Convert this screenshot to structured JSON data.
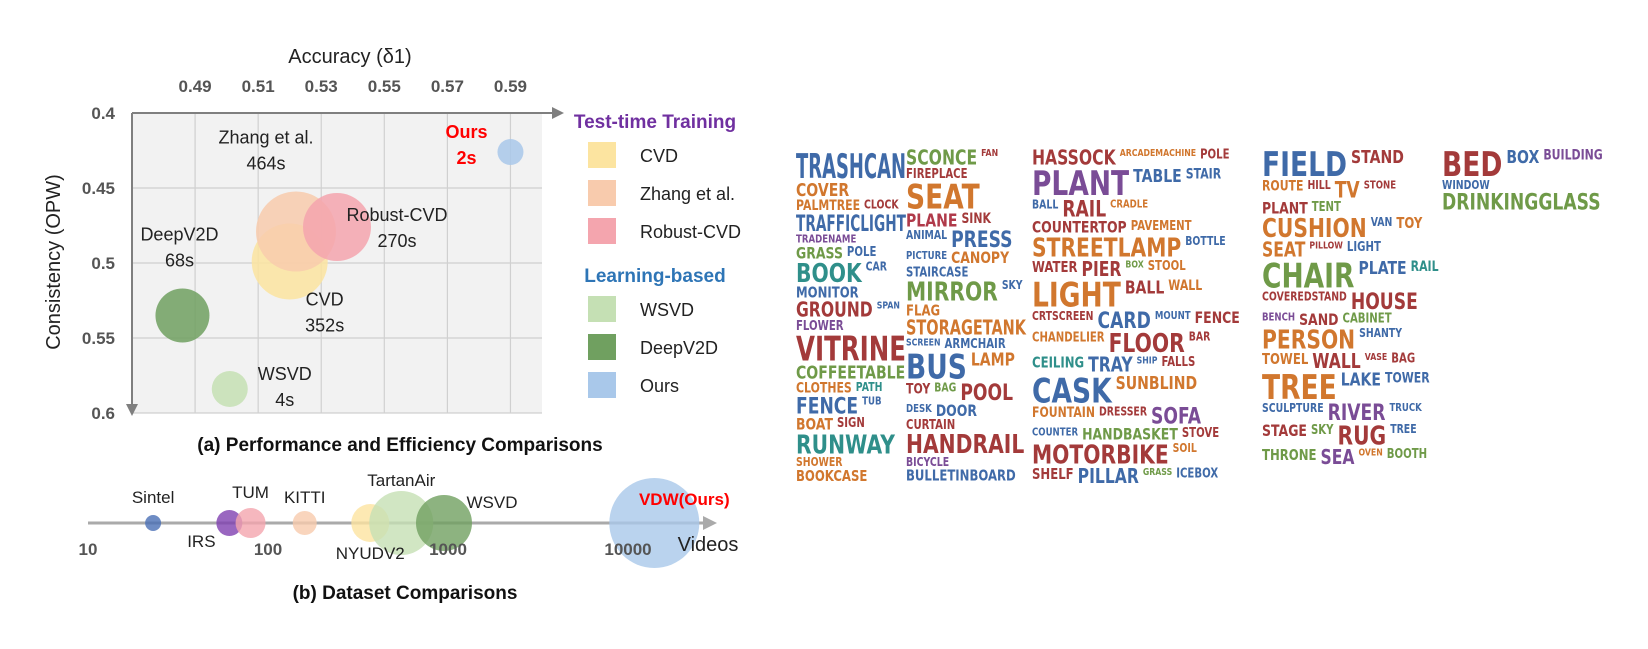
{
  "chart_data": [
    {
      "type": "scatter",
      "subtype": "bubble",
      "title": "(a) Performance and Efficiency Comparisons",
      "xlabel": "Accuracy (δ1)",
      "ylabel": "Consistency (OPW)",
      "x_ticks": [
        "0.49",
        "0.51",
        "0.53",
        "0.55",
        "0.57",
        "0.59"
      ],
      "y_ticks": [
        "0.4",
        "0.45",
        "0.5",
        "0.55",
        "0.6"
      ],
      "xlim": [
        0.47,
        0.6
      ],
      "ylim": [
        0.4,
        0.6
      ],
      "y_inverted": true,
      "grid": true,
      "legend_position": "right",
      "legend_groups": [
        {
          "title": "Test-time Training",
          "color": "#7030a0",
          "items": [
            "CVD",
            "Zhang et al.",
            "Robust-CVD"
          ]
        },
        {
          "title": "Learning-based",
          "color": "#2e75b6",
          "items": [
            "WSVD",
            "DeepV2D",
            "Ours"
          ]
        }
      ],
      "series": [
        {
          "name": "CVD",
          "x": 0.52,
          "y": 0.499,
          "label": "CVD",
          "time": "352s",
          "color": "#fce4a0",
          "size": 38
        },
        {
          "name": "Zhang et al.",
          "x": 0.522,
          "y": 0.479,
          "label": "Zhang et al.",
          "time": "464s",
          "color": "#f8cbad",
          "size": 40
        },
        {
          "name": "Robust-CVD",
          "x": 0.535,
          "y": 0.476,
          "label": "Robust-CVD",
          "time": "270s",
          "color": "#f4a5ae",
          "size": 34
        },
        {
          "name": "WSVD",
          "x": 0.501,
          "y": 0.584,
          "label": "WSVD",
          "time": "4s",
          "color": "#c5e0b4",
          "size": 18
        },
        {
          "name": "DeepV2D",
          "x": 0.486,
          "y": 0.535,
          "label": "DeepV2D",
          "time": "68s",
          "color": "#70a060",
          "size": 27
        },
        {
          "name": "Ours",
          "x": 0.59,
          "y": 0.426,
          "label": "Ours",
          "time": "2s",
          "color": "#a9c8ea",
          "size": 13
        }
      ]
    },
    {
      "type": "scatter",
      "subtype": "bubble",
      "title": "(b) Dataset Comparisons",
      "xlabel": "Videos",
      "x_scale": "log",
      "x_ticks": [
        "10",
        "100",
        "1000",
        "10000"
      ],
      "series": [
        {
          "name": "Sintel",
          "x": 23,
          "label": "Sintel",
          "color": "#4a6fb5",
          "size": 8
        },
        {
          "name": "IRS",
          "x": 61,
          "label": "IRS",
          "color": "#8040b0",
          "size": 13
        },
        {
          "name": "TUM",
          "x": 80,
          "label": "TUM",
          "color": "#f4a5ae",
          "size": 15
        },
        {
          "name": "KITTI",
          "x": 160,
          "label": "KITTI",
          "color": "#f8cbad",
          "size": 12
        },
        {
          "name": "NYUDV2",
          "x": 370,
          "label": "NYUDV2",
          "color": "#fce4a0",
          "size": 19
        },
        {
          "name": "TartanAir",
          "x": 550,
          "label": "TartanAir",
          "color": "#c5e0b4",
          "size": 32
        },
        {
          "name": "WSVD",
          "x": 950,
          "label": "WSVD",
          "color": "#70a060",
          "size": 28
        },
        {
          "name": "VDW(Ours)",
          "x": 14000,
          "label": "VDW(Ours)",
          "color": "#a9c8ea",
          "size": 45
        }
      ]
    }
  ],
  "colors": {
    "axis": "#7f7f7f",
    "plot_bg": "#f2f2f2",
    "grid": "#d0d0d0",
    "ours_label": "#ff0000"
  },
  "wordcloud": {
    "palette": [
      "#3f6aa8",
      "#a33a3a",
      "#6f9a48",
      "#d1772e",
      "#2f8f8a",
      "#7a4c96",
      "#b03a4a",
      "#4a7fa6"
    ],
    "words": [
      {
        "t": "TRASHCAN",
        "c": 0
      },
      {
        "t": "COVER",
        "c": 3
      },
      {
        "t": "PALMTREE",
        "c": 3
      },
      {
        "t": "CLOCK",
        "c": 1
      },
      {
        "t": "TRAFFICLIGHT",
        "c": 0
      },
      {
        "t": "TRADENAME",
        "c": 5
      },
      {
        "t": "GRASS",
        "c": 2
      },
      {
        "t": "POLE",
        "c": 0
      },
      {
        "t": "BOOK",
        "c": 4
      },
      {
        "t": "CAR",
        "c": 0
      },
      {
        "t": "MONITOR",
        "c": 0
      },
      {
        "t": "GROUND",
        "c": 1
      },
      {
        "t": "SPAN",
        "c": 0
      },
      {
        "t": "FLOWER",
        "c": 5
      },
      {
        "t": "VITRINE",
        "c": 1
      },
      {
        "t": "COFFEETABLE",
        "c": 2
      },
      {
        "t": "CLOTHES",
        "c": 3
      },
      {
        "t": "PATH",
        "c": 4
      },
      {
        "t": "FENCE",
        "c": 0
      },
      {
        "t": "TUB",
        "c": 0
      },
      {
        "t": "BOAT",
        "c": 3
      },
      {
        "t": "SIGN",
        "c": 1
      },
      {
        "t": "RUNWAY",
        "c": 4
      },
      {
        "t": "SHOWER",
        "c": 3
      },
      {
        "t": "BOOKCASE",
        "c": 3
      },
      {
        "t": "SCONCE",
        "c": 2
      },
      {
        "t": "FAN",
        "c": 1
      },
      {
        "t": "FIREPLACE",
        "c": 1
      },
      {
        "t": "SEAT",
        "c": 3
      },
      {
        "t": "PLANE",
        "c": 6
      },
      {
        "t": "SINK",
        "c": 1
      },
      {
        "t": "ANIMAL",
        "c": 0
      },
      {
        "t": "PRESS",
        "c": 0
      },
      {
        "t": "PICTURE",
        "c": 0
      },
      {
        "t": "CANOPY",
        "c": 3
      },
      {
        "t": "STAIRCASE",
        "c": 0
      },
      {
        "t": "MIRROR",
        "c": 2
      },
      {
        "t": "SKY",
        "c": 0
      },
      {
        "t": "FLAG",
        "c": 3
      },
      {
        "t": "STORAGETANK",
        "c": 3
      },
      {
        "t": "SCREEN",
        "c": 0
      },
      {
        "t": "ARMCHAIR",
        "c": 0
      },
      {
        "t": "BUS",
        "c": 0
      },
      {
        "t": "LAMP",
        "c": 3
      },
      {
        "t": "TOY",
        "c": 1
      },
      {
        "t": "BAG",
        "c": 2
      },
      {
        "t": "POOL",
        "c": 1
      },
      {
        "t": "DESK",
        "c": 0
      },
      {
        "t": "DOOR",
        "c": 0
      },
      {
        "t": "CURTAIN",
        "c": 1
      },
      {
        "t": "HANDRAIL",
        "c": 1
      },
      {
        "t": "BICYCLE",
        "c": 5
      },
      {
        "t": "BULLETINBOARD",
        "c": 0
      },
      {
        "t": "HASSOCK",
        "c": 1
      },
      {
        "t": "ARCADEMACHINE",
        "c": 3
      },
      {
        "t": "POLE",
        "c": 1
      },
      {
        "t": "PLANT",
        "c": 5
      },
      {
        "t": "TABLE",
        "c": 0
      },
      {
        "t": "STAIR",
        "c": 0
      },
      {
        "t": "BALL",
        "c": 0
      },
      {
        "t": "RAIL",
        "c": 1
      },
      {
        "t": "CRADLE",
        "c": 3
      },
      {
        "t": "COUNTERTOP",
        "c": 1
      },
      {
        "t": "PAVEMENT",
        "c": 3
      },
      {
        "t": "STREETLAMP",
        "c": 3
      },
      {
        "t": "BOTTLE",
        "c": 0
      },
      {
        "t": "WATER",
        "c": 1
      },
      {
        "t": "PIER",
        "c": 1
      },
      {
        "t": "BOX",
        "c": 2
      },
      {
        "t": "STOOL",
        "c": 3
      },
      {
        "t": "LIGHT",
        "c": 3
      },
      {
        "t": "BALL",
        "c": 1
      },
      {
        "t": "WALL",
        "c": 3
      },
      {
        "t": "CRTSCREEN",
        "c": 1
      },
      {
        "t": "CARD",
        "c": 0
      },
      {
        "t": "MOUNT",
        "c": 0
      },
      {
        "t": "FENCE",
        "c": 1
      },
      {
        "t": "CHANDELIER",
        "c": 3
      },
      {
        "t": "FLOOR",
        "c": 1
      },
      {
        "t": "BAR",
        "c": 1
      },
      {
        "t": "CEILING",
        "c": 4
      },
      {
        "t": "TRAY",
        "c": 0
      },
      {
        "t": "SHIP",
        "c": 0
      },
      {
        "t": "FALLS",
        "c": 1
      },
      {
        "t": "CASK",
        "c": 0
      },
      {
        "t": "SUNBLIND",
        "c": 3
      },
      {
        "t": "FOUNTAIN",
        "c": 3
      },
      {
        "t": "DRESSER",
        "c": 1
      },
      {
        "t": "SOFA",
        "c": 5
      },
      {
        "t": "COUNTER",
        "c": 0
      },
      {
        "t": "HANDBASKET",
        "c": 2
      },
      {
        "t": "STOVE",
        "c": 1
      },
      {
        "t": "MOTORBIKE",
        "c": 1
      },
      {
        "t": "SOIL",
        "c": 3
      },
      {
        "t": "SHELF",
        "c": 1
      },
      {
        "t": "PILLAR",
        "c": 0
      },
      {
        "t": "GRASS",
        "c": 2
      },
      {
        "t": "ICEBOX",
        "c": 0
      },
      {
        "t": "FIELD",
        "c": 0
      },
      {
        "t": "STAND",
        "c": 1
      },
      {
        "t": "ROUTE",
        "c": 3
      },
      {
        "t": "HILL",
        "c": 1
      },
      {
        "t": "TV",
        "c": 3
      },
      {
        "t": "STONE",
        "c": 1
      },
      {
        "t": "PLANT",
        "c": 1
      },
      {
        "t": "TENT",
        "c": 2
      },
      {
        "t": "CUSHION",
        "c": 3
      },
      {
        "t": "VAN",
        "c": 0
      },
      {
        "t": "TOY",
        "c": 3
      },
      {
        "t": "SEAT",
        "c": 3
      },
      {
        "t": "PILLOW",
        "c": 1
      },
      {
        "t": "LIGHT",
        "c": 0
      },
      {
        "t": "CHAIR",
        "c": 2
      },
      {
        "t": "PLATE",
        "c": 0
      },
      {
        "t": "RAIL",
        "c": 4
      },
      {
        "t": "COVEREDSTAND",
        "c": 1
      },
      {
        "t": "HOUSE",
        "c": 1
      },
      {
        "t": "BENCH",
        "c": 5
      },
      {
        "t": "SAND",
        "c": 1
      },
      {
        "t": "CABINET",
        "c": 2
      },
      {
        "t": "PERSON",
        "c": 3
      },
      {
        "t": "SHANTY",
        "c": 0
      },
      {
        "t": "TOWEL",
        "c": 3
      },
      {
        "t": "WALL",
        "c": 1
      },
      {
        "t": "VASE",
        "c": 1
      },
      {
        "t": "BAG",
        "c": 1
      },
      {
        "t": "TREE",
        "c": 3
      },
      {
        "t": "LAKE",
        "c": 0
      },
      {
        "t": "TOWER",
        "c": 0
      },
      {
        "t": "SCULPTURE",
        "c": 0
      },
      {
        "t": "RIVER",
        "c": 5
      },
      {
        "t": "TRUCK",
        "c": 0
      },
      {
        "t": "STAGE",
        "c": 1
      },
      {
        "t": "SKY",
        "c": 2
      },
      {
        "t": "RUG",
        "c": 1
      },
      {
        "t": "TREE",
        "c": 0
      },
      {
        "t": "THRONE",
        "c": 2
      },
      {
        "t": "SEA",
        "c": 5
      },
      {
        "t": "OVEN",
        "c": 3
      },
      {
        "t": "BOOTH",
        "c": 2
      },
      {
        "t": "BED",
        "c": 1
      },
      {
        "t": "BOX",
        "c": 0
      },
      {
        "t": "BUILDING",
        "c": 5
      },
      {
        "t": "WINDOW",
        "c": 0
      },
      {
        "t": "DRINKINGGLASS",
        "c": 2
      }
    ]
  }
}
